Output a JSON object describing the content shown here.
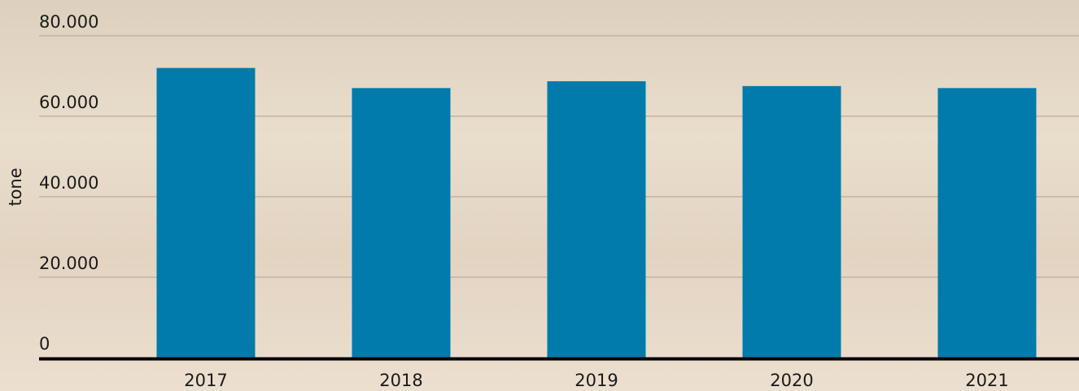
{
  "chart_data": {
    "type": "bar",
    "y_label": "tone",
    "categories": [
      "2017",
      "2018",
      "2019",
      "2020",
      "2021"
    ],
    "values": [
      72000,
      67000,
      68700,
      67500,
      67000
    ],
    "color": "#007bab",
    "ylim": [
      0,
      80000
    ],
    "yticks": [
      0,
      {
        "value": 20000,
        "label": "20.000"
      },
      {
        "value": 40000,
        "label": "40.000"
      },
      {
        "value": 60000,
        "label": "60.000"
      },
      {
        "value": 80000,
        "label": "80.000"
      }
    ],
    "grid": true
  }
}
